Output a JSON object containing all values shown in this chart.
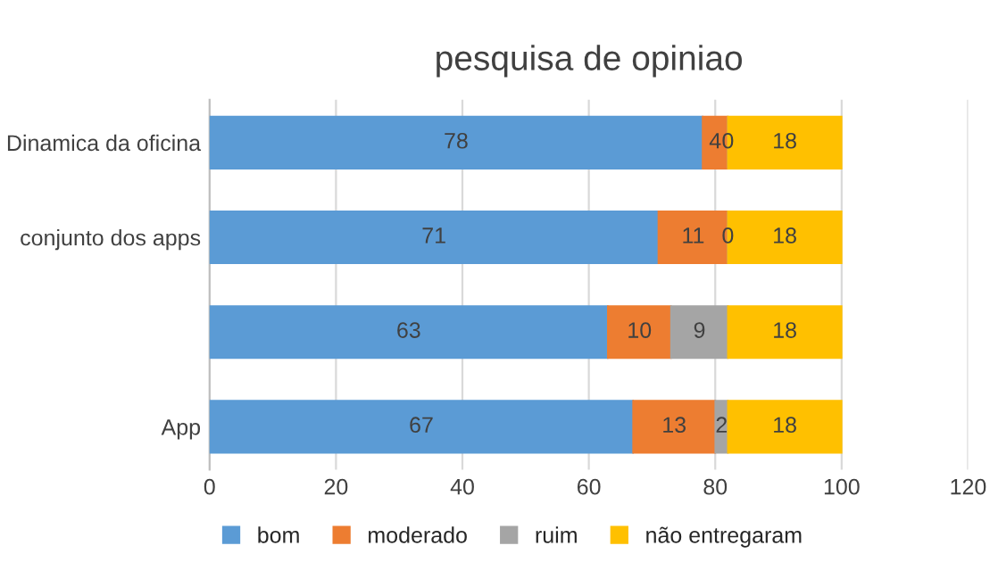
{
  "chart_data": {
    "type": "bar",
    "title": "pesquisa de opiniao",
    "orientation": "horizontal",
    "stacked": true,
    "categories": [
      "Dinamica da oficina",
      "conjunto dos apps",
      null,
      "App"
    ],
    "series": [
      {
        "name": "bom",
        "color": "#5b9bd5",
        "values": [
          78,
          71,
          63,
          67
        ]
      },
      {
        "name": "moderado",
        "color": "#ed7d31",
        "values": [
          4,
          11,
          10,
          13
        ]
      },
      {
        "name": "ruim",
        "color": "#a5a5a5",
        "values": [
          0,
          0,
          9,
          2
        ]
      },
      {
        "name": "não entregaram",
        "color": "#ffc000",
        "values": [
          18,
          18,
          18,
          18
        ]
      }
    ],
    "xlim": [
      0,
      120
    ],
    "xticks": [
      0,
      20,
      40,
      60,
      80,
      100,
      120
    ],
    "grid": "x",
    "legend": "bottom",
    "data_labels": true
  }
}
